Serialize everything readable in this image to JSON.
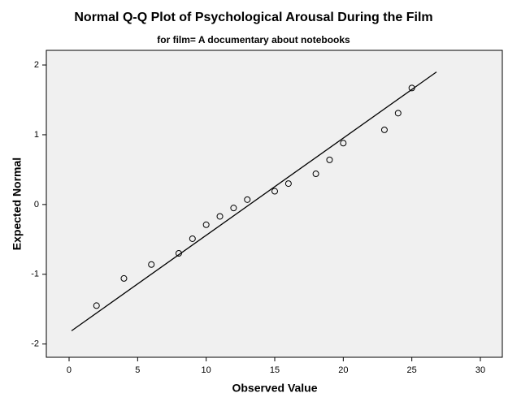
{
  "chart_data": {
    "type": "scatter",
    "title": "Normal Q-Q Plot of Psychological Arousal During the Film",
    "subtitle": "for film= A documentary about notebooks",
    "x_label": "Observed Value",
    "y_label": "Expected Normal",
    "series": [
      {
        "color": "#000000",
        "x": [
          2,
          4,
          6,
          8,
          9,
          10,
          11,
          12,
          13,
          15,
          16,
          18,
          19,
          20,
          23,
          24,
          25
        ],
        "values": [
          -1.45,
          -1.06,
          -0.86,
          -0.7,
          -0.49,
          -0.29,
          -0.17,
          -0.05,
          0.07,
          0.19,
          0.3,
          0.44,
          0.64,
          0.88,
          1.07,
          1.31,
          1.67
        ]
      }
    ],
    "reference_line": {
      "x": [
        0.18,
        26.8
      ],
      "y": [
        -1.81,
        1.9
      ]
    },
    "xlim": [
      -1.66,
      31.6
    ],
    "ylim": [
      -2.19,
      2.21
    ],
    "xticks": [
      0,
      5,
      10,
      15,
      20,
      25,
      30
    ],
    "yticks": [
      -2,
      -1,
      0,
      1,
      2
    ]
  }
}
